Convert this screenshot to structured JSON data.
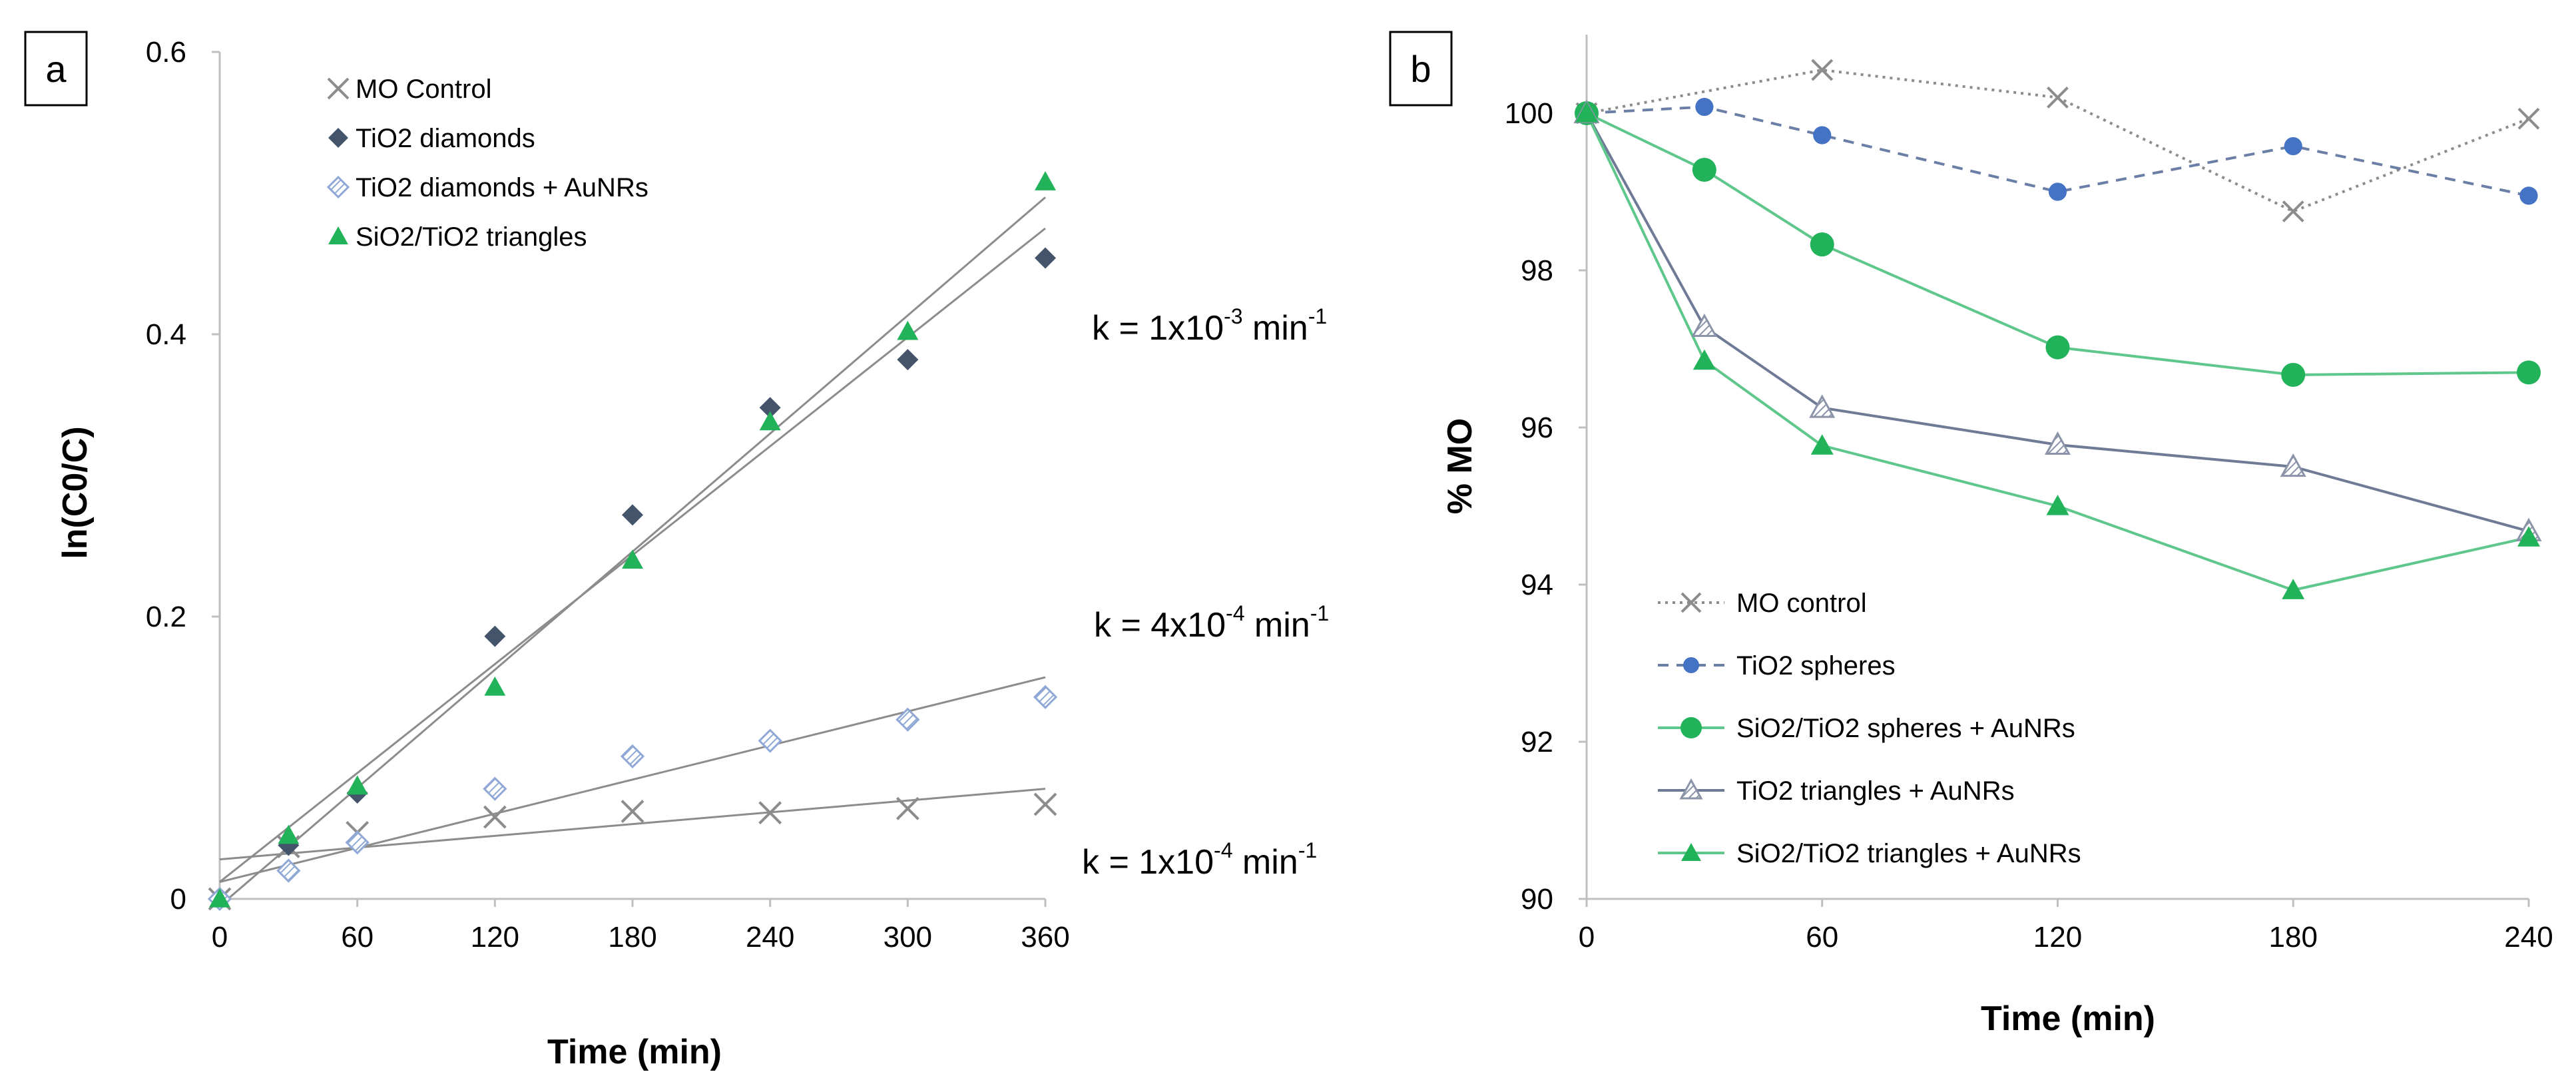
{
  "colors": {
    "mo": "#8c8c8c",
    "tio2_diamonds": "#44546a",
    "tio2_diamonds_aunr": "#b4c6e7",
    "green": "#22b35a",
    "green_line": "#5fc78b",
    "blue": "#4472c4",
    "blue_line": "#6b7fa6",
    "slate_line": "#6f7b96",
    "fit_line": "#8c8c8c"
  },
  "chart_data": [
    {
      "type": "scatter",
      "panel_label": "a",
      "title": "",
      "xlabel": "Time (min)",
      "ylabel": "ln(C0/C)",
      "xlim": [
        0,
        360
      ],
      "ylim": [
        0,
        0.6
      ],
      "x_ticks": [
        "0",
        "60",
        "120",
        "180",
        "240",
        "300",
        "360"
      ],
      "y_ticks": [
        "0",
        "0.2",
        "0.4",
        "0.6"
      ],
      "legend_position": "top-left",
      "series": [
        {
          "name": "MO Control",
          "marker": "x",
          "color_key": "mo",
          "x": [
            0,
            30,
            60,
            120,
            180,
            240,
            300,
            360
          ],
          "y": [
            0.0,
            0.037,
            0.047,
            0.058,
            0.062,
            0.061,
            0.064,
            0.067
          ]
        },
        {
          "name": "TiO2 diamonds",
          "marker": "diamond",
          "color_key": "tio2_diamonds",
          "x": [
            0,
            30,
            60,
            120,
            180,
            240,
            300,
            360
          ],
          "y": [
            0.0,
            0.038,
            0.075,
            0.186,
            0.272,
            0.348,
            0.382,
            0.454
          ]
        },
        {
          "name": "TiO2 diamonds + AuNRs",
          "marker": "diamond-hatched",
          "color_key": "tio2_diamonds_aunr",
          "x": [
            0,
            30,
            60,
            120,
            180,
            240,
            300,
            360
          ],
          "y": [
            0.0,
            0.02,
            0.04,
            0.078,
            0.101,
            0.112,
            0.127,
            0.143
          ]
        },
        {
          "name": "SiO2/TiO2 triangles",
          "marker": "triangle",
          "color_key": "green",
          "x": [
            0,
            30,
            60,
            120,
            180,
            240,
            300,
            360
          ],
          "y": [
            0.0,
            0.045,
            0.08,
            0.15,
            0.24,
            0.338,
            0.402,
            0.508
          ]
        }
      ],
      "fit_lines": [
        {
          "x": [
            0,
            360
          ],
          "y": [
            0.028,
            0.078
          ]
        },
        {
          "x": [
            0,
            360
          ],
          "y": [
            0.012,
            0.157
          ]
        },
        {
          "x": [
            0,
            360
          ],
          "y": [
            0.012,
            0.475
          ]
        },
        {
          "x": [
            0,
            360
          ],
          "y": [
            -0.005,
            0.497
          ]
        }
      ],
      "annotations": [
        {
          "base": "k = 1x10",
          "exp": "-3",
          "unit": " min",
          "unit_exp": "-1"
        },
        {
          "base": "k = 4x10",
          "exp": "-4",
          "unit": " min",
          "unit_exp": "-1"
        },
        {
          "base": "k = 1x10",
          "exp": "-4",
          "unit": " min",
          "unit_exp": "-1"
        }
      ]
    },
    {
      "type": "line",
      "panel_label": "b",
      "title": "",
      "xlabel": "Time (min)",
      "ylabel": "% MO",
      "xlim": [
        0,
        240
      ],
      "ylim": [
        90,
        101
      ],
      "x_ticks": [
        "0",
        "60",
        "120",
        "180",
        "240"
      ],
      "y_ticks": [
        "90",
        "92",
        "94",
        "96",
        "98",
        "100"
      ],
      "legend_position": "bottom-left",
      "series": [
        {
          "name": "MO control",
          "marker": "x",
          "dash": "dotted",
          "color_key": "mo",
          "x": [
            0,
            60,
            120,
            180,
            240
          ],
          "y": [
            100.0,
            100.55,
            100.2,
            98.75,
            99.93
          ]
        },
        {
          "name": "TiO2 spheres",
          "marker": "circle-small",
          "dash": "dashed",
          "color_key": "blue",
          "x": [
            0,
            30,
            60,
            120,
            180,
            240
          ],
          "y": [
            100.0,
            100.08,
            99.72,
            99.0,
            99.58,
            98.95
          ]
        },
        {
          "name": "SiO2/TiO2 spheres + AuNRs",
          "marker": "circle",
          "dash": "solid",
          "color_key": "green",
          "x": [
            0,
            30,
            60,
            120,
            180,
            240
          ],
          "y": [
            100.0,
            99.28,
            98.33,
            97.02,
            96.67,
            96.7
          ]
        },
        {
          "name": "TiO2 triangles + AuNRs",
          "marker": "triangle-hatched",
          "dash": "solid",
          "color_key": "slate_line",
          "x": [
            0,
            30,
            60,
            120,
            180,
            240
          ],
          "y": [
            100.0,
            97.28,
            96.25,
            95.78,
            95.5,
            94.68
          ]
        },
        {
          "name": "SiO2/TiO2 triangles + AuNRs",
          "marker": "triangle",
          "dash": "solid",
          "color_key": "green",
          "x": [
            0,
            30,
            60,
            120,
            180,
            240
          ],
          "y": [
            100.0,
            96.85,
            95.77,
            95.0,
            93.93,
            94.6
          ]
        }
      ]
    }
  ]
}
